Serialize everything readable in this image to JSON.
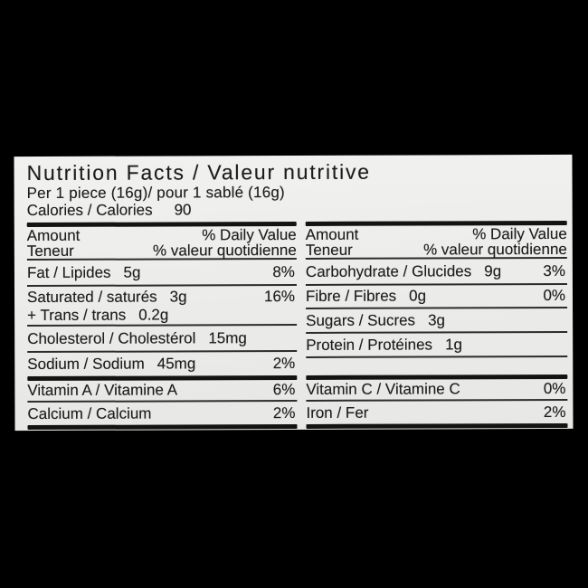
{
  "background_color": "#000000",
  "label_colors": {
    "paper": "#ededeb",
    "ink": "#1d1d1d",
    "rule": "#2c2c2c"
  },
  "label": {
    "title": "Nutrition Facts / Valeur nutritive",
    "serving": "Per 1 piece (16g)/ pour 1 sablé (16g)",
    "calories": {
      "label": "Calories / Calories",
      "value": "90"
    },
    "header": {
      "amount_en": "Amount",
      "dv_en": "% Daily Value",
      "amount_fr": "Teneur",
      "dv_fr": "% valeur quotidienne"
    },
    "left_column": {
      "rows": [
        {
          "name": "Fat / Lipides",
          "amount": "5g",
          "dv": "8%"
        },
        {
          "name": "Saturated / saturés",
          "amount": "3g",
          "dv": "16%",
          "name2": "+ Trans / trans",
          "amount2": "0.2g"
        },
        {
          "name": "Cholesterol / Cholestérol",
          "amount": "15mg",
          "dv": ""
        },
        {
          "name": "Sodium / Sodium",
          "amount": "45mg",
          "dv": "2%"
        }
      ],
      "micronutrients": [
        {
          "name": "Vitamin A / Vitamine A",
          "dv": "6%"
        },
        {
          "name": "Calcium / Calcium",
          "dv": "2%"
        }
      ]
    },
    "right_column": {
      "rows": [
        {
          "name": "Carbohydrate / Glucides",
          "amount": "9g",
          "dv": "3%"
        },
        {
          "name": "Fibre / Fibres",
          "amount": "0g",
          "dv": "0%"
        },
        {
          "name": "Sugars / Sucres",
          "amount": "3g",
          "dv": ""
        },
        {
          "name": "Protein / Protéines",
          "amount": "1g",
          "dv": ""
        }
      ],
      "micronutrients": [
        {
          "name": "Vitamin C / Vitamine C",
          "dv": "0%"
        },
        {
          "name": "Iron / Fer",
          "dv": "2%"
        }
      ]
    }
  }
}
